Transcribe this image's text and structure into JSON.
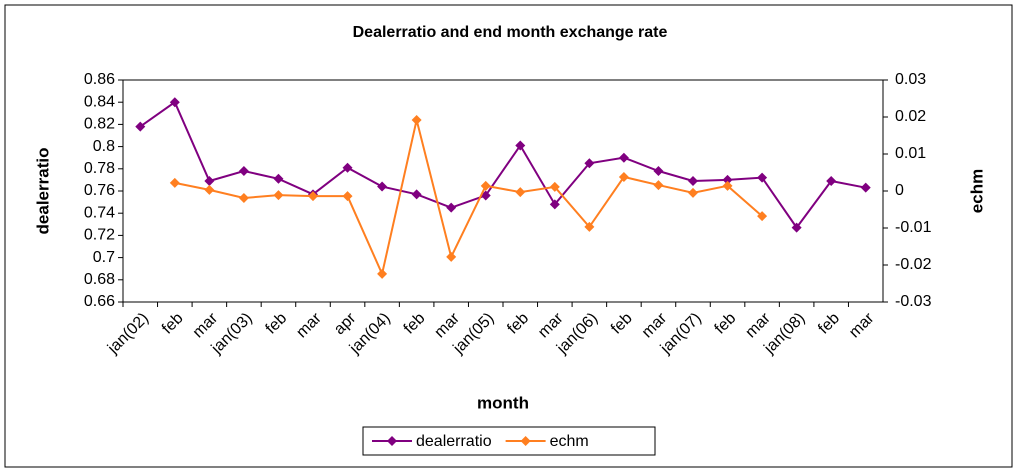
{
  "chart_data": {
    "type": "line",
    "title": "Dealerratio and end month exchange rate",
    "x_label": "month",
    "y_label": "dealerratio",
    "y2_label": "echm",
    "categories": [
      "jan(02)",
      "feb",
      "mar",
      "jan(03)",
      "feb",
      "mar",
      "apr",
      "jan(04)",
      "feb",
      "mar",
      "jan(05)",
      "feb",
      "mar",
      "jan(06)",
      "feb",
      "mar",
      "jan(07)",
      "feb",
      "mar",
      "jan(08)",
      "feb",
      "mar"
    ],
    "series": [
      {
        "name": "dealerratio",
        "color": "#800080",
        "values": [
          0.818,
          0.84,
          0.769,
          0.778,
          0.771,
          0.757,
          0.781,
          0.764,
          0.757,
          0.745,
          0.756,
          0.801,
          0.748,
          0.785,
          0.79,
          0.778,
          0.769,
          0.77,
          0.772,
          0.727,
          0.769,
          0.763
        ]
      },
      {
        "name": "echm",
        "color": "#ff7f20",
        "axis": "y2",
        "values": [
          null,
          0.0022,
          0.0003,
          -0.0019,
          -0.0011,
          -0.0014,
          -0.0014,
          -0.0224,
          0.0192,
          -0.0178,
          0.0014,
          -0.0003,
          0.0011,
          -0.0097,
          0.0038,
          0.0016,
          -0.0005,
          0.0014,
          -0.0068,
          null,
          null,
          null
        ]
      }
    ],
    "ylim": [
      0.66,
      0.86
    ],
    "yticks": [
      0.66,
      0.68,
      0.7,
      0.72,
      0.74,
      0.76,
      0.78,
      0.8,
      0.82,
      0.84,
      0.86
    ],
    "y2lim": [
      -0.03,
      0.03
    ],
    "y2ticks": [
      -0.03,
      -0.02,
      -0.01,
      0,
      0.01,
      0.02,
      0.03
    ],
    "legend": "bottom"
  }
}
